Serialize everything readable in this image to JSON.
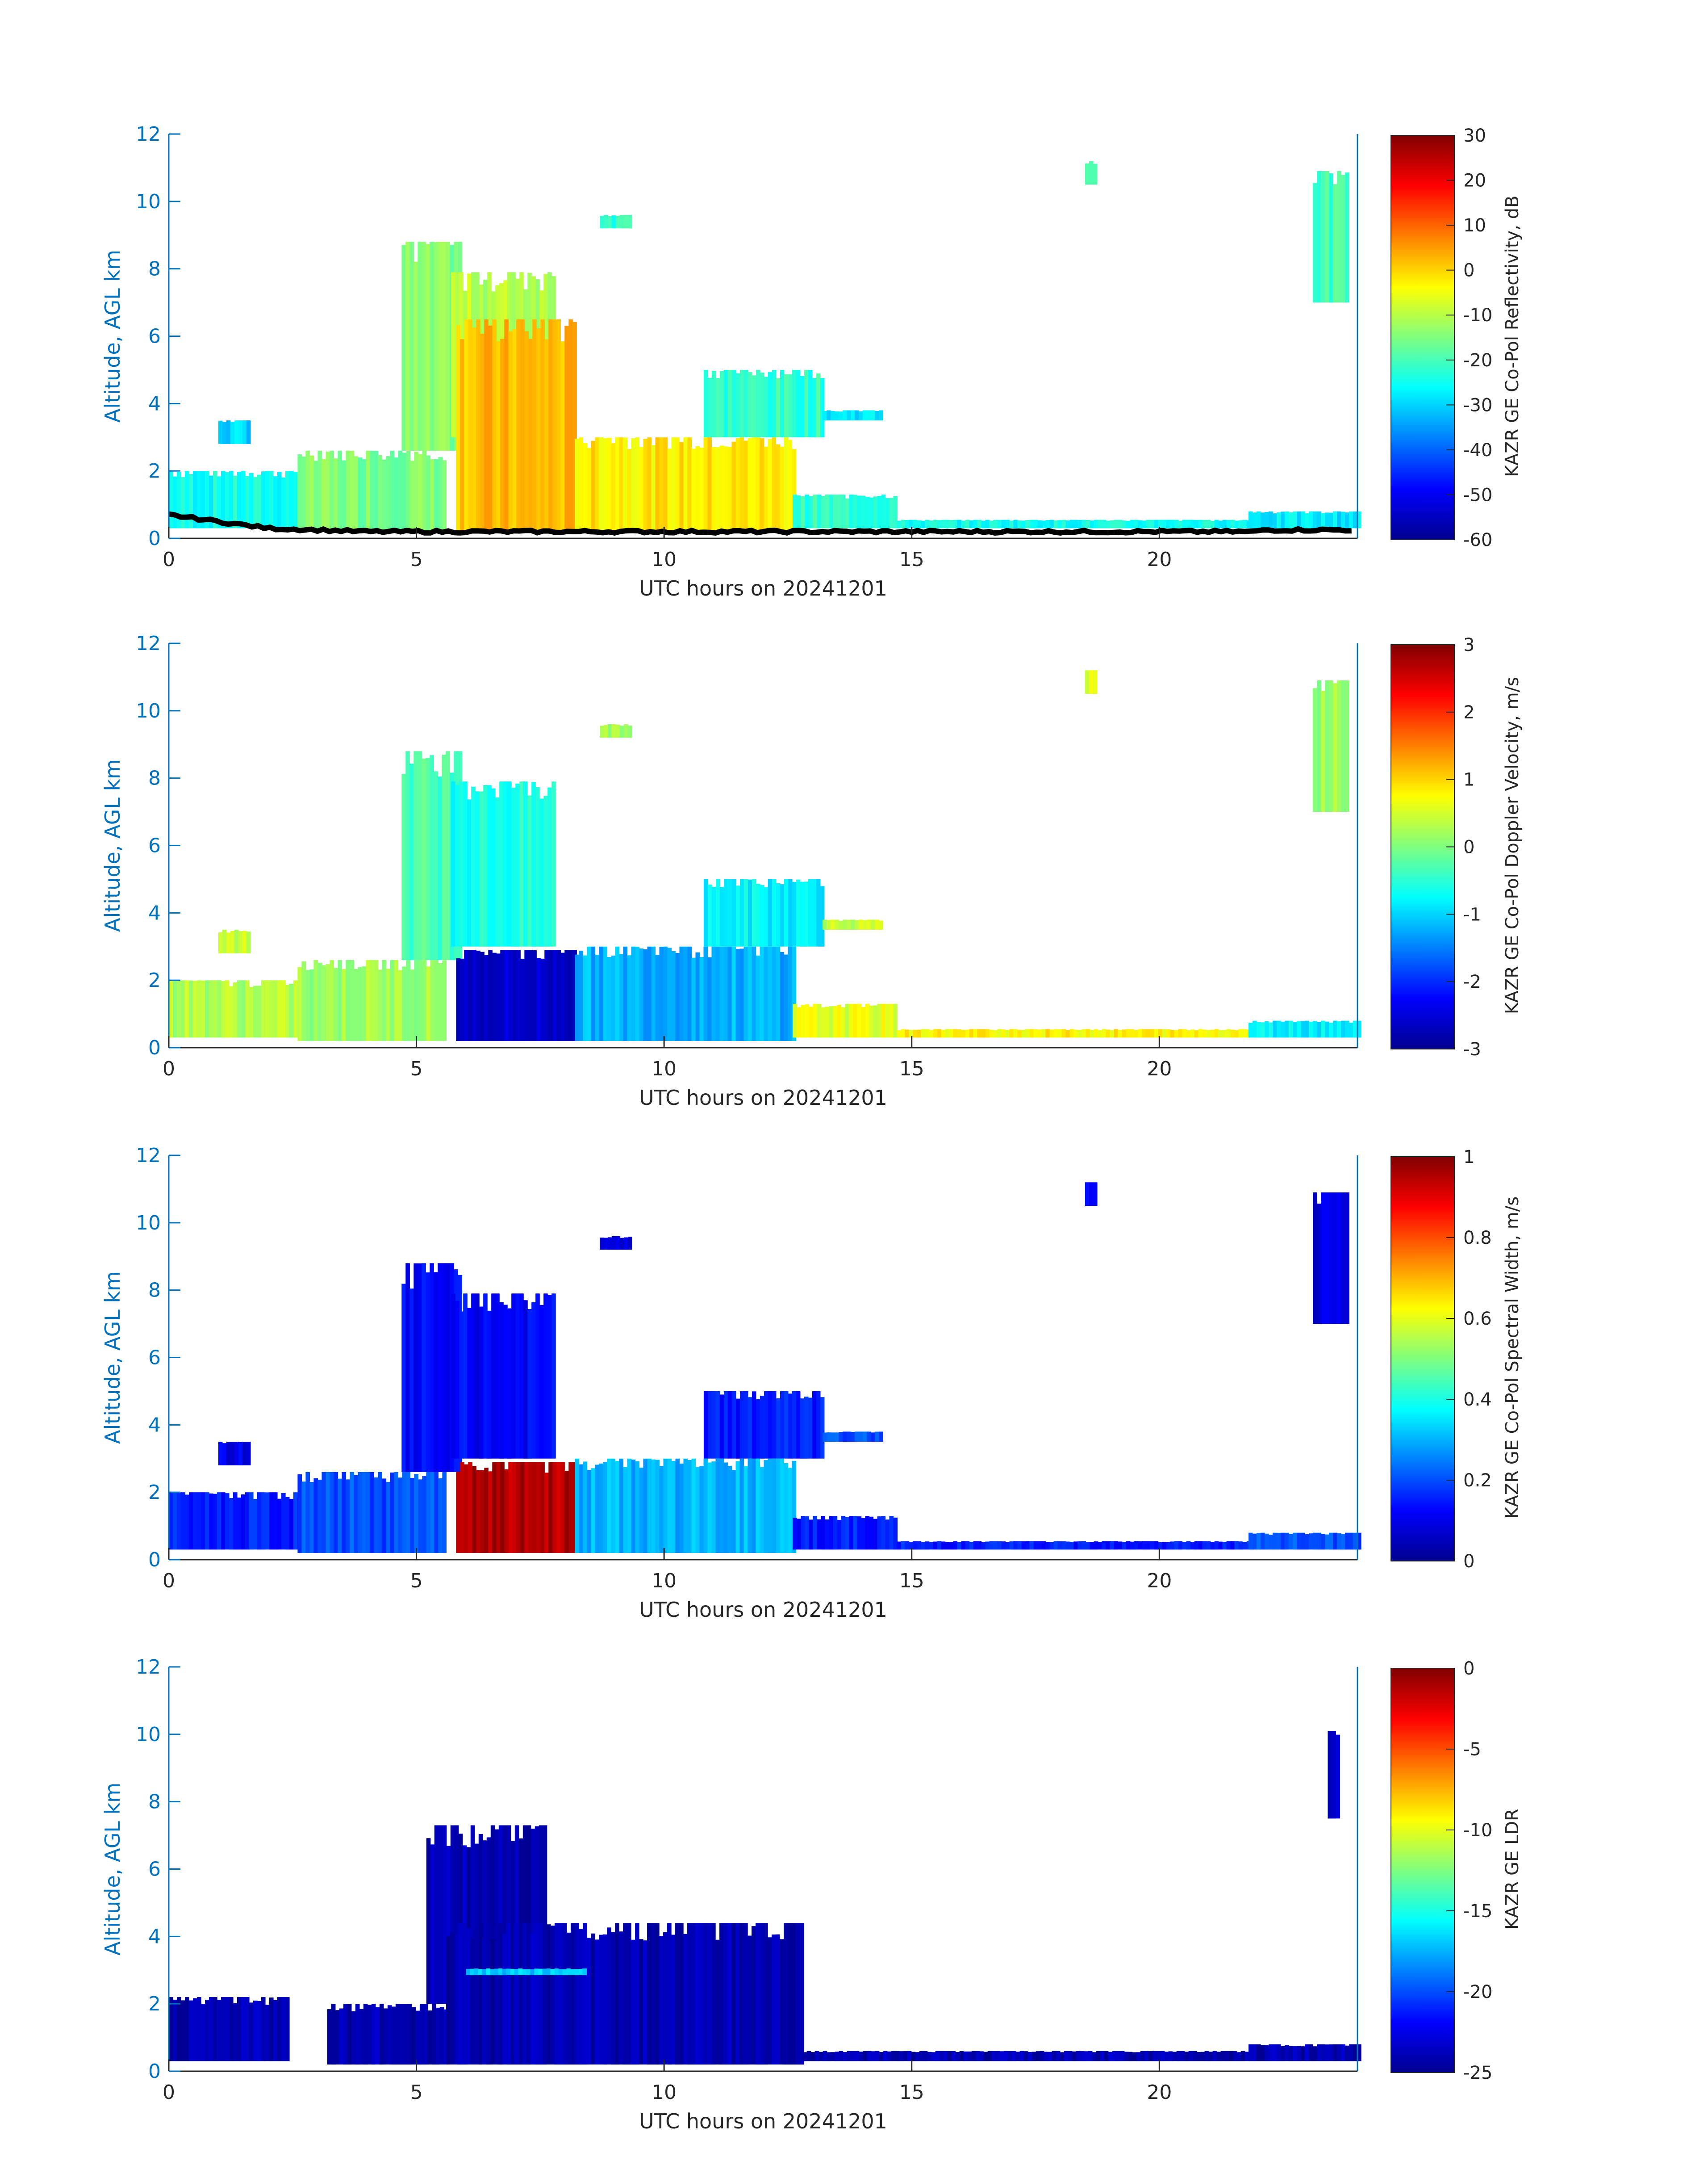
{
  "chart_data": [
    {
      "type": "heatmap",
      "variable": "reflectivity",
      "xlabel": "UTC hours on 20241201",
      "ylabel": "Altitude, AGL km",
      "xlim": [
        0,
        24
      ],
      "ylim": [
        0,
        12
      ],
      "x_ticks": [
        "0",
        "5",
        "10",
        "15",
        "20"
      ],
      "y_ticks": [
        "0",
        "2",
        "4",
        "6",
        "8",
        "10",
        "12"
      ],
      "colorbar": {
        "label": "KAZR GE Co-Pol Reflectivity, dB",
        "range": [
          -60,
          30
        ],
        "ticks": [
          "30",
          "20",
          "10",
          "0",
          "-10",
          "-20",
          "-30",
          "-40",
          "-50",
          "-60"
        ],
        "colormap": "jet"
      },
      "overlay": "cloud base height (black dots)",
      "cloud_regions": [
        {
          "t_start": 0.0,
          "t_end": 2.6,
          "bottom_km": 0.3,
          "top_km": 2.0,
          "value": -25
        },
        {
          "t_start": 1.0,
          "t_end": 1.6,
          "bottom_km": 2.8,
          "top_km": 3.5,
          "value": -30
        },
        {
          "t_start": 2.6,
          "t_end": 5.6,
          "bottom_km": 0.2,
          "top_km": 2.6,
          "value": -15
        },
        {
          "t_start": 4.7,
          "t_end": 5.9,
          "bottom_km": 2.6,
          "top_km": 8.8,
          "value": -15
        },
        {
          "t_start": 5.7,
          "t_end": 7.8,
          "bottom_km": 3.0,
          "top_km": 7.9,
          "value": -10
        },
        {
          "t_start": 5.8,
          "t_end": 8.2,
          "bottom_km": 0.2,
          "top_km": 6.5,
          "value": 2
        },
        {
          "t_start": 8.2,
          "t_end": 12.6,
          "bottom_km": 0.2,
          "top_km": 3.0,
          "value": -2
        },
        {
          "t_start": 10.8,
          "t_end": 13.2,
          "bottom_km": 3.0,
          "top_km": 5.0,
          "value": -22
        },
        {
          "t_start": 13.2,
          "t_end": 14.4,
          "bottom_km": 3.5,
          "top_km": 3.8,
          "value": -28
        },
        {
          "t_start": 12.6,
          "t_end": 14.7,
          "bottom_km": 0.3,
          "top_km": 1.3,
          "value": -22
        },
        {
          "t_start": 14.7,
          "t_end": 21.8,
          "bottom_km": 0.3,
          "top_km": 0.55,
          "value": -25
        },
        {
          "t_start": 21.8,
          "t_end": 24.0,
          "bottom_km": 0.3,
          "top_km": 0.8,
          "value": -28
        },
        {
          "t_start": 18.5,
          "t_end": 18.7,
          "bottom_km": 10.5,
          "top_km": 11.2,
          "value": -20
        },
        {
          "t_start": 23.1,
          "t_end": 23.8,
          "bottom_km": 7.0,
          "top_km": 10.9,
          "value": -20
        },
        {
          "t_start": 8.7,
          "t_end": 9.3,
          "bottom_km": 9.2,
          "top_km": 9.6,
          "value": -22
        }
      ]
    },
    {
      "type": "heatmap",
      "variable": "doppler_velocity",
      "xlabel": "UTC hours on 20241201",
      "ylabel": "Altitude, AGL km",
      "xlim": [
        0,
        24
      ],
      "ylim": [
        0,
        12
      ],
      "x_ticks": [
        "0",
        "5",
        "10",
        "15",
        "20"
      ],
      "y_ticks": [
        "0",
        "2",
        "4",
        "6",
        "8",
        "10",
        "12"
      ],
      "colorbar": {
        "label": "KAZR GE Co-Pol Doppler Velocity, m/s",
        "range": [
          -3,
          3
        ],
        "ticks": [
          "3",
          "2",
          "1",
          "0",
          "-1",
          "-2",
          "-3"
        ],
        "colormap": "jet"
      },
      "cloud_regions": [
        {
          "t_start": 0.0,
          "t_end": 2.6,
          "bottom_km": 0.3,
          "top_km": 2.0,
          "value": 0.3
        },
        {
          "t_start": 1.0,
          "t_end": 1.6,
          "bottom_km": 2.8,
          "top_km": 3.5,
          "value": 0.4
        },
        {
          "t_start": 2.6,
          "t_end": 5.6,
          "bottom_km": 0.2,
          "top_km": 2.6,
          "value": 0.2
        },
        {
          "t_start": 4.7,
          "t_end": 5.9,
          "bottom_km": 2.6,
          "top_km": 8.8,
          "value": -0.3
        },
        {
          "t_start": 5.7,
          "t_end": 7.8,
          "bottom_km": 3.0,
          "top_km": 7.9,
          "value": -0.6
        },
        {
          "t_start": 5.8,
          "t_end": 8.2,
          "bottom_km": 0.2,
          "top_km": 2.9,
          "value": -2.6
        },
        {
          "t_start": 8.2,
          "t_end": 12.6,
          "bottom_km": 0.2,
          "top_km": 3.0,
          "value": -1.2
        },
        {
          "t_start": 10.8,
          "t_end": 13.2,
          "bottom_km": 3.0,
          "top_km": 5.0,
          "value": -0.8
        },
        {
          "t_start": 13.2,
          "t_end": 14.4,
          "bottom_km": 3.5,
          "top_km": 3.8,
          "value": 0.4
        },
        {
          "t_start": 12.6,
          "t_end": 14.7,
          "bottom_km": 0.3,
          "top_km": 1.3,
          "value": 0.6
        },
        {
          "t_start": 14.7,
          "t_end": 21.8,
          "bottom_km": 0.3,
          "top_km": 0.55,
          "value": 0.8
        },
        {
          "t_start": 21.8,
          "t_end": 24.0,
          "bottom_km": 0.3,
          "top_km": 0.8,
          "value": -0.8
        },
        {
          "t_start": 18.5,
          "t_end": 18.7,
          "bottom_km": 10.5,
          "top_km": 11.2,
          "value": 0.5
        },
        {
          "t_start": 23.1,
          "t_end": 23.8,
          "bottom_km": 7.0,
          "top_km": 10.9,
          "value": 0.2
        },
        {
          "t_start": 8.7,
          "t_end": 9.3,
          "bottom_km": 9.2,
          "top_km": 9.6,
          "value": 0.2
        }
      ]
    },
    {
      "type": "heatmap",
      "variable": "spectral_width",
      "xlabel": "UTC hours on 20241201",
      "ylabel": "Altitude, AGL km",
      "xlim": [
        0,
        24
      ],
      "ylim": [
        0,
        12
      ],
      "x_ticks": [
        "0",
        "5",
        "10",
        "15",
        "20"
      ],
      "y_ticks": [
        "0",
        "2",
        "4",
        "6",
        "8",
        "10",
        "12"
      ],
      "colorbar": {
        "label": "KAZR GE Co-Pol Spectral Width, m/s",
        "range": [
          0,
          1
        ],
        "ticks": [
          "1",
          "0.8",
          "0.6",
          "0.4",
          "0.2",
          "0"
        ],
        "colormap": "jet"
      },
      "cloud_regions": [
        {
          "t_start": 0.0,
          "t_end": 2.6,
          "bottom_km": 0.3,
          "top_km": 2.0,
          "value": 0.15
        },
        {
          "t_start": 1.0,
          "t_end": 1.6,
          "bottom_km": 2.8,
          "top_km": 3.5,
          "value": 0.1
        },
        {
          "t_start": 2.6,
          "t_end": 5.6,
          "bottom_km": 0.2,
          "top_km": 2.6,
          "value": 0.2
        },
        {
          "t_start": 4.7,
          "t_end": 5.9,
          "bottom_km": 2.6,
          "top_km": 8.8,
          "value": 0.12
        },
        {
          "t_start": 5.7,
          "t_end": 7.8,
          "bottom_km": 3.0,
          "top_km": 7.9,
          "value": 0.12
        },
        {
          "t_start": 5.8,
          "t_end": 8.2,
          "bottom_km": 0.2,
          "top_km": 2.9,
          "value": 0.95
        },
        {
          "t_start": 8.2,
          "t_end": 12.6,
          "bottom_km": 0.2,
          "top_km": 3.0,
          "value": 0.3
        },
        {
          "t_start": 10.8,
          "t_end": 13.2,
          "bottom_km": 3.0,
          "top_km": 5.0,
          "value": 0.15
        },
        {
          "t_start": 13.2,
          "t_end": 14.4,
          "bottom_km": 3.5,
          "top_km": 3.8,
          "value": 0.2
        },
        {
          "t_start": 12.6,
          "t_end": 14.7,
          "bottom_km": 0.3,
          "top_km": 1.3,
          "value": 0.15
        },
        {
          "t_start": 14.7,
          "t_end": 21.8,
          "bottom_km": 0.3,
          "top_km": 0.55,
          "value": 0.15
        },
        {
          "t_start": 21.8,
          "t_end": 24.0,
          "bottom_km": 0.3,
          "top_km": 0.8,
          "value": 0.2
        },
        {
          "t_start": 18.5,
          "t_end": 18.7,
          "bottom_km": 10.5,
          "top_km": 11.2,
          "value": 0.1
        },
        {
          "t_start": 23.1,
          "t_end": 23.8,
          "bottom_km": 7.0,
          "top_km": 10.9,
          "value": 0.08
        },
        {
          "t_start": 8.7,
          "t_end": 9.3,
          "bottom_km": 9.2,
          "top_km": 9.6,
          "value": 0.08
        }
      ]
    },
    {
      "type": "heatmap",
      "variable": "ldr",
      "xlabel": "UTC hours on 20241201",
      "ylabel": "Altitude, AGL km",
      "xlim": [
        0,
        24
      ],
      "ylim": [
        0,
        12
      ],
      "x_ticks": [
        "0",
        "5",
        "10",
        "15",
        "20"
      ],
      "y_ticks": [
        "0",
        "2",
        "4",
        "6",
        "8",
        "10",
        "12"
      ],
      "colorbar": {
        "label": "KAZR GE LDR",
        "range": [
          -25,
          0
        ],
        "ticks": [
          "0",
          "-5",
          "-10",
          "-15",
          "-20",
          "-25"
        ],
        "colormap": "jet"
      },
      "cloud_regions": [
        {
          "t_start": 0.0,
          "t_end": 2.4,
          "bottom_km": 0.3,
          "top_km": 2.2,
          "value": -24
        },
        {
          "t_start": 3.2,
          "t_end": 5.6,
          "bottom_km": 0.2,
          "top_km": 2.0,
          "value": -24
        },
        {
          "t_start": 5.2,
          "t_end": 7.6,
          "bottom_km": 2.0,
          "top_km": 7.3,
          "value": -24
        },
        {
          "t_start": 5.6,
          "t_end": 12.8,
          "bottom_km": 0.2,
          "top_km": 4.4,
          "value": -24
        },
        {
          "t_start": 6.0,
          "t_end": 8.4,
          "bottom_km": 2.85,
          "top_km": 3.05,
          "value": -17
        },
        {
          "t_start": 12.8,
          "t_end": 21.8,
          "bottom_km": 0.3,
          "top_km": 0.6,
          "value": -24
        },
        {
          "t_start": 21.8,
          "t_end": 24.0,
          "bottom_km": 0.3,
          "top_km": 0.8,
          "value": -24
        },
        {
          "t_start": 23.4,
          "t_end": 23.6,
          "bottom_km": 7.5,
          "top_km": 10.1,
          "value": -23
        }
      ]
    }
  ]
}
